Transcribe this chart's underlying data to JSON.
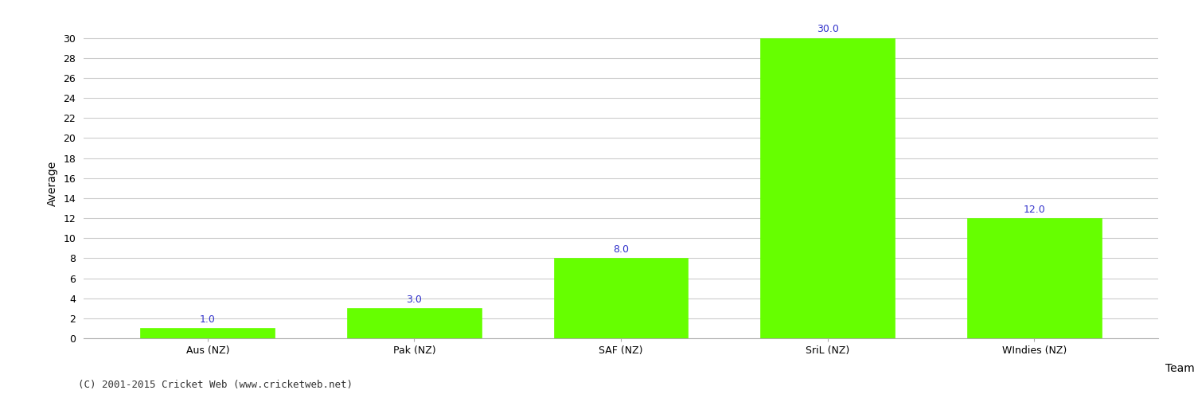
{
  "categories": [
    "Aus (NZ)",
    "Pak (NZ)",
    "SAF (NZ)",
    "SriL (NZ)",
    "WIndies (NZ)"
  ],
  "values": [
    1.0,
    3.0,
    8.0,
    30.0,
    12.0
  ],
  "bar_color": "#66ff00",
  "bar_edge_color": "#66ff00",
  "label_color": "#3333cc",
  "xlabel": "Team",
  "ylabel": "Average",
  "ylim": [
    0,
    31
  ],
  "yticks": [
    0,
    2,
    4,
    6,
    8,
    10,
    12,
    14,
    16,
    18,
    20,
    22,
    24,
    26,
    28,
    30
  ],
  "background_color": "#ffffff",
  "grid_color": "#cccccc",
  "annotation_fontsize": 9,
  "axis_label_fontsize": 10,
  "tick_fontsize": 9,
  "footer_text": "(C) 2001-2015 Cricket Web (www.cricketweb.net)",
  "footer_fontsize": 9
}
